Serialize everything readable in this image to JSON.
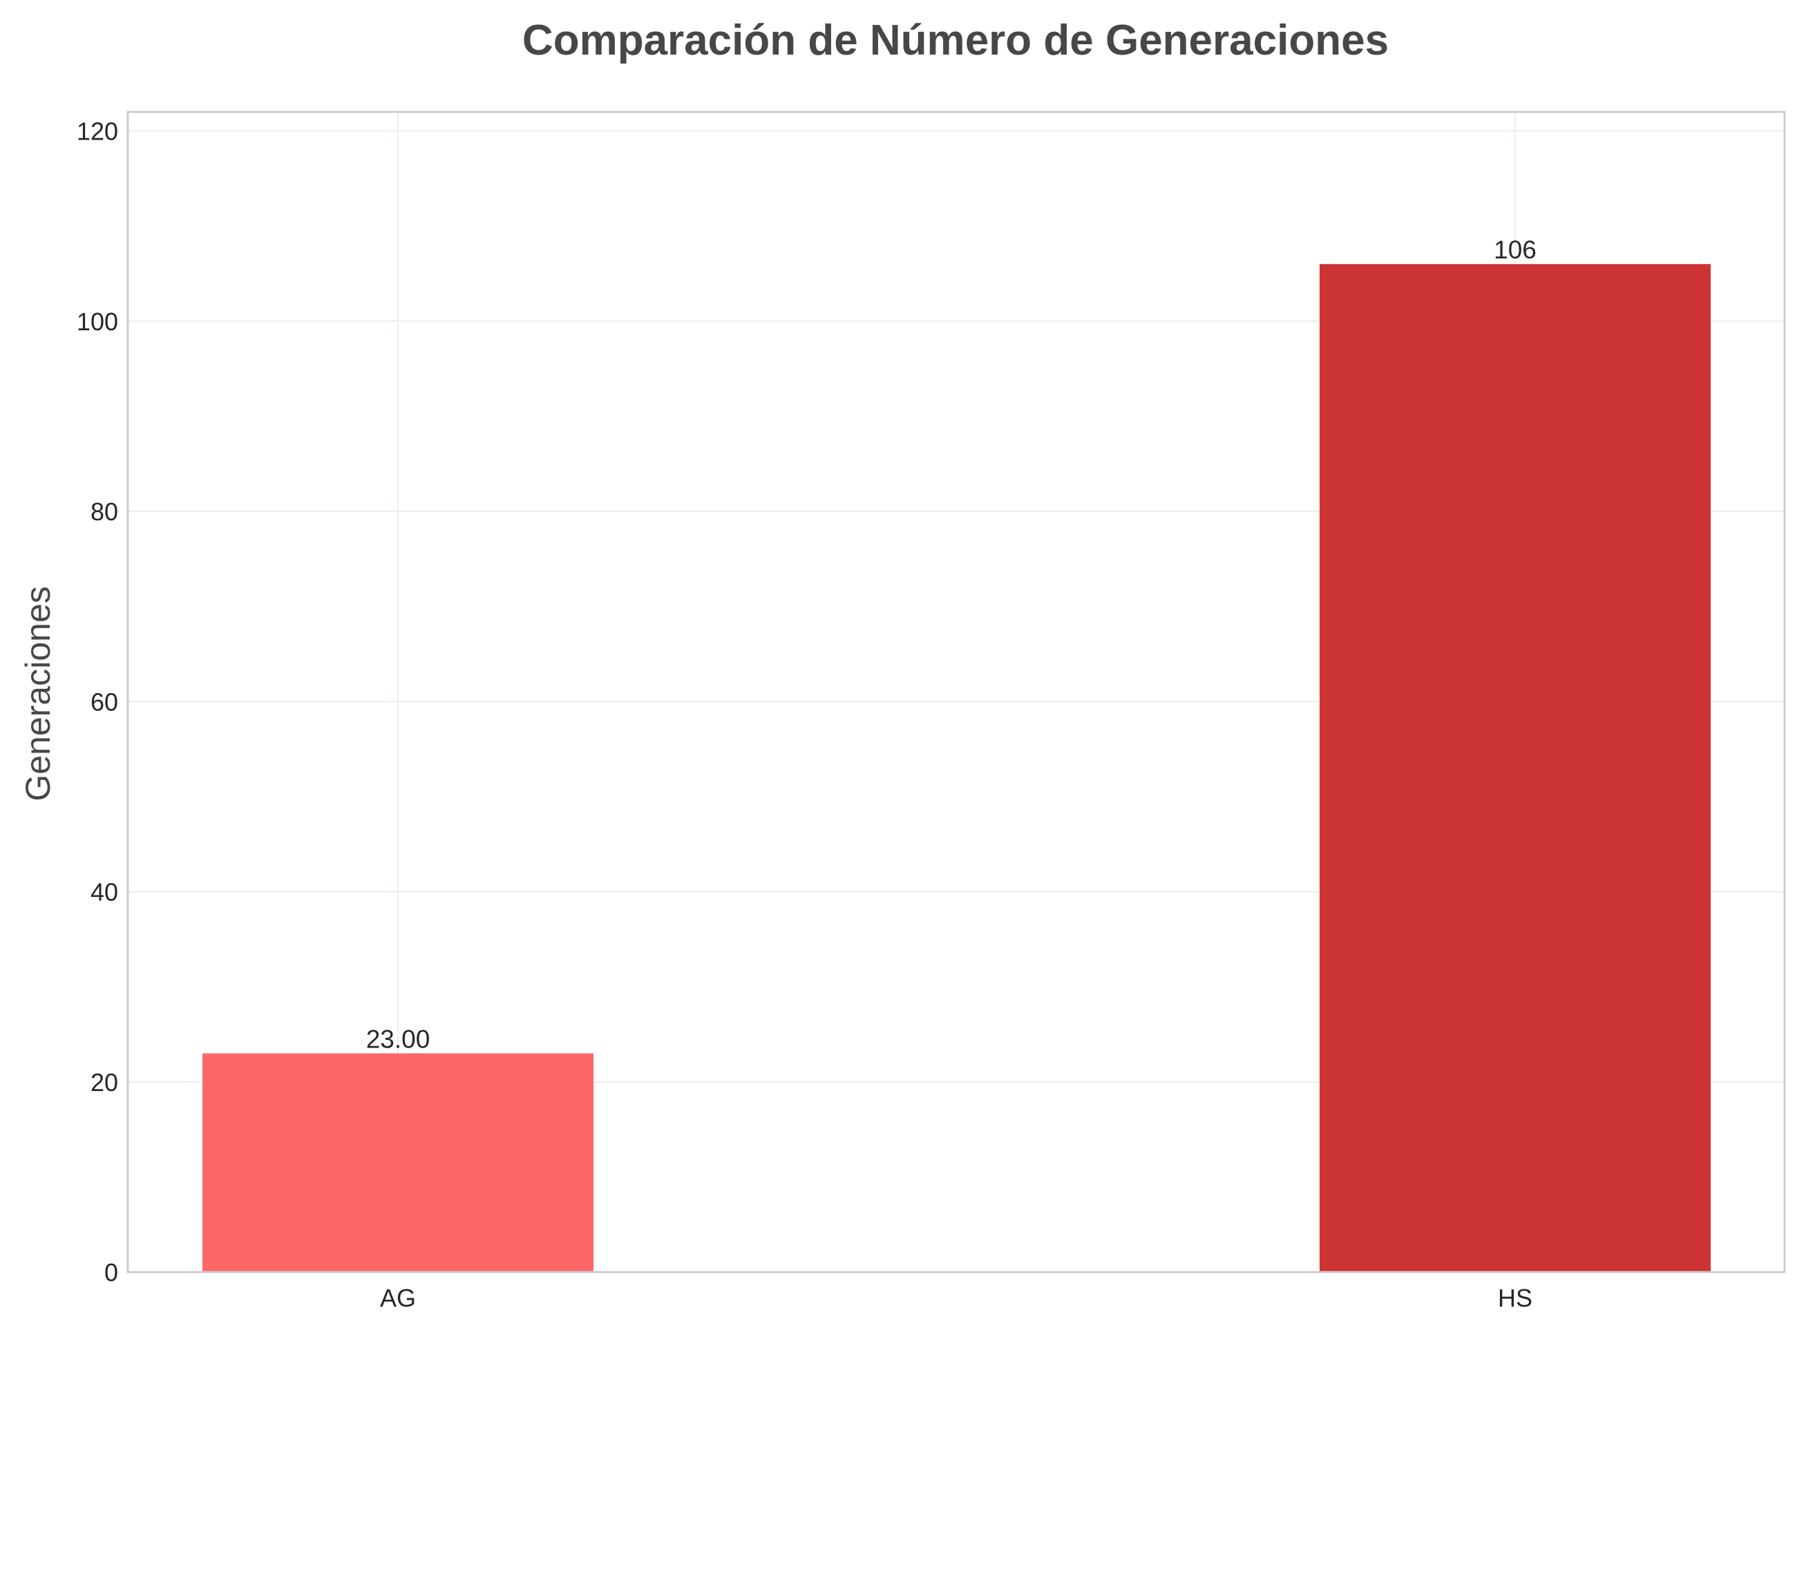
{
  "chart_data": {
    "type": "bar",
    "title": "Comparación de Número de Generaciones",
    "xlabel": "",
    "ylabel": "Generaciones",
    "categories": [
      "AG",
      "HS"
    ],
    "values": [
      23,
      106
    ],
    "value_labels": [
      "23.00",
      "106"
    ],
    "bar_colors": [
      "#ff6666",
      "#cc3333"
    ],
    "ylim": [
      0,
      122
    ],
    "yticks": [
      0,
      20,
      40,
      60,
      80,
      100,
      120
    ],
    "grid": true,
    "legend": "none"
  },
  "colors": {
    "title": "#474747",
    "ylabel": "#474747",
    "ticks": "#262626",
    "spines": "#cccccc",
    "grid": "#f2eaea"
  }
}
